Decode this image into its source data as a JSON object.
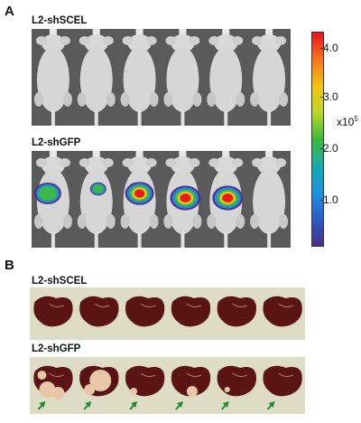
{
  "panel_a": {
    "letter": "A",
    "top_group_label": "L2-shSCEL",
    "bottom_group_label": "L2-shGFP",
    "colorbar": {
      "ticks": [
        "4.0",
        "3.0",
        "2.0",
        "1.0"
      ],
      "unit_base": "x10",
      "unit_exp": "5",
      "colors": [
        "#e8141c",
        "#f7711d",
        "#f2c80f",
        "#b7d629",
        "#3dba3c",
        "#14a9b8",
        "#1f8fe0",
        "#2d58c4",
        "#4a2f86"
      ]
    },
    "mice_per_row": 6
  },
  "panel_b": {
    "letter": "B",
    "top_group_label": "L2-shSCEL",
    "bottom_group_label": "L2-shGFP",
    "livers_per_row": 6,
    "liver_color": "#5b1414",
    "tumor_color": "#e8c6a8",
    "arrow_color": "#1f8c2e"
  }
}
